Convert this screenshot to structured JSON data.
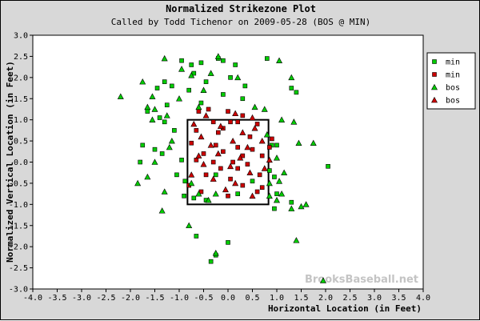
{
  "chart_data": {
    "type": "scatter",
    "title": "Normalized Strikezone Plot",
    "subtitle": "Called by Todd Tichenor on 2009-05-28 (BOS @ MIN)",
    "xlabel": "Horizontal Location (in Feet)",
    "ylabel": "Normalized Vertical Location (in Feet)",
    "xlim": [
      -4.0,
      4.0
    ],
    "ylim": [
      -3.0,
      3.0
    ],
    "x_ticks": [
      "-4.0",
      "-3.5",
      "-3.0",
      "-2.5",
      "-2.0",
      "-1.5",
      "-1.0",
      "-0.5",
      "0.0",
      "0.5",
      "1.0",
      "1.5",
      "2.0",
      "2.5",
      "3.0",
      "3.5",
      "4.0"
    ],
    "y_ticks": [
      "3.0",
      "2.5",
      "2.0",
      "1.5",
      "1.0",
      "0.5",
      "0.0",
      "-0.5",
      "-1.0",
      "-1.5",
      "-2.0",
      "-2.5",
      "-3.0"
    ],
    "grid": false,
    "legend_position": "top-right",
    "watermark": "BrooksBaseball.net",
    "strike_zone": {
      "x": [
        -0.83,
        0.83
      ],
      "y": [
        -1.0,
        1.0
      ]
    },
    "series": [
      {
        "name": "min",
        "marker": "square",
        "color": "#00cc00",
        "points": [
          [
            -0.95,
            2.4
          ],
          [
            -0.75,
            2.3
          ],
          [
            -0.55,
            2.35
          ],
          [
            -0.2,
            2.45
          ],
          [
            -0.1,
            2.4
          ],
          [
            0.15,
            2.3
          ],
          [
            0.8,
            2.45
          ],
          [
            -1.3,
            1.9
          ],
          [
            -0.7,
            2.1
          ],
          [
            -0.45,
            1.9
          ],
          [
            0.05,
            2.0
          ],
          [
            0.35,
            1.8
          ],
          [
            -1.45,
            1.75
          ],
          [
            -1.15,
            1.8
          ],
          [
            -0.8,
            1.7
          ],
          [
            -0.1,
            1.6
          ],
          [
            0.3,
            1.5
          ],
          [
            1.3,
            1.75
          ],
          [
            1.4,
            1.65
          ],
          [
            -1.65,
            1.2
          ],
          [
            -1.25,
            1.35
          ],
          [
            -0.55,
            1.4
          ],
          [
            -1.4,
            1.05
          ],
          [
            -1.3,
            0.95
          ],
          [
            -1.1,
            0.75
          ],
          [
            -1.75,
            0.4
          ],
          [
            -1.5,
            0.3
          ],
          [
            -1.35,
            0.2
          ],
          [
            0.9,
            0.4
          ],
          [
            1.0,
            0.4
          ],
          [
            -0.95,
            0.05
          ],
          [
            -1.05,
            -0.3
          ],
          [
            -0.88,
            -0.45
          ],
          [
            -0.9,
            -0.8
          ],
          [
            -0.7,
            -0.85
          ],
          [
            -0.45,
            -0.9
          ],
          [
            -0.25,
            -0.3
          ],
          [
            0.2,
            -0.75
          ],
          [
            0.85,
            -0.2
          ],
          [
            0.95,
            -0.35
          ],
          [
            1.0,
            -0.75
          ],
          [
            0.95,
            -1.1
          ],
          [
            1.3,
            -0.95
          ],
          [
            2.05,
            -0.1
          ],
          [
            -0.65,
            -1.75
          ],
          [
            0.0,
            -1.9
          ],
          [
            -0.25,
            -2.2
          ],
          [
            -0.35,
            -2.35
          ],
          [
            0.5,
            -0.45
          ],
          [
            -1.8,
            0.0
          ]
        ]
      },
      {
        "name": "min",
        "marker": "square",
        "color": "#cc0000",
        "points": [
          [
            -0.4,
            1.25
          ],
          [
            -0.6,
            1.2
          ],
          [
            0.0,
            1.2
          ],
          [
            0.3,
            1.1
          ],
          [
            -0.3,
            0.95
          ],
          [
            0.05,
            0.95
          ],
          [
            0.2,
            0.95
          ],
          [
            0.6,
            0.9
          ],
          [
            -0.65,
            0.75
          ],
          [
            -0.2,
            0.7
          ],
          [
            0.45,
            0.6
          ],
          [
            0.9,
            0.55
          ],
          [
            -0.75,
            0.45
          ],
          [
            -0.25,
            0.4
          ],
          [
            0.2,
            0.35
          ],
          [
            0.5,
            0.3
          ],
          [
            0.85,
            0.35
          ],
          [
            -0.5,
            0.2
          ],
          [
            -0.1,
            0.25
          ],
          [
            0.3,
            0.15
          ],
          [
            0.7,
            0.15
          ],
          [
            -0.65,
            0.05
          ],
          [
            -0.3,
            0.0
          ],
          [
            0.1,
            0.0
          ],
          [
            0.4,
            -0.05
          ],
          [
            -0.15,
            -0.15
          ],
          [
            0.2,
            -0.15
          ],
          [
            -0.45,
            -0.3
          ],
          [
            0.65,
            -0.3
          ],
          [
            -0.8,
            -0.55
          ],
          [
            0.3,
            -0.55
          ],
          [
            0.7,
            -0.6
          ],
          [
            -0.55,
            -0.7
          ],
          [
            0.0,
            -0.8
          ],
          [
            0.6,
            -0.7
          ],
          [
            -0.1,
            0.8
          ],
          [
            0.05,
            -0.4
          ]
        ]
      },
      {
        "name": "bos",
        "marker": "triangle",
        "color": "#00cc00",
        "points": [
          [
            -1.3,
            2.45
          ],
          [
            -0.95,
            2.2
          ],
          [
            -0.75,
            2.05
          ],
          [
            -0.35,
            2.1
          ],
          [
            -0.2,
            2.5
          ],
          [
            0.2,
            2.0
          ],
          [
            1.05,
            2.4
          ],
          [
            1.3,
            2.0
          ],
          [
            -1.75,
            1.9
          ],
          [
            -0.5,
            1.7
          ],
          [
            -2.2,
            1.55
          ],
          [
            -1.55,
            1.55
          ],
          [
            -1.0,
            1.5
          ],
          [
            -0.6,
            1.3
          ],
          [
            0.55,
            1.3
          ],
          [
            0.75,
            1.25
          ],
          [
            -1.65,
            1.3
          ],
          [
            -1.5,
            1.25
          ],
          [
            -1.25,
            1.1
          ],
          [
            -1.55,
            1.0
          ],
          [
            1.1,
            1.0
          ],
          [
            1.35,
            0.95
          ],
          [
            -1.15,
            0.5
          ],
          [
            -1.2,
            0.35
          ],
          [
            -1.5,
            0.0
          ],
          [
            -1.85,
            -0.5
          ],
          [
            -1.65,
            -0.35
          ],
          [
            0.8,
            0.65
          ],
          [
            1.45,
            0.45
          ],
          [
            1.75,
            0.45
          ],
          [
            1.0,
            0.1
          ],
          [
            1.15,
            -0.25
          ],
          [
            1.05,
            -0.45
          ],
          [
            0.85,
            -0.5
          ],
          [
            0.85,
            -0.8
          ],
          [
            1.0,
            -0.9
          ],
          [
            1.1,
            -0.75
          ],
          [
            1.3,
            -1.1
          ],
          [
            1.5,
            -1.05
          ],
          [
            1.6,
            -1.0
          ],
          [
            -0.75,
            -0.5
          ],
          [
            -0.6,
            -0.75
          ],
          [
            -0.4,
            -0.9
          ],
          [
            -0.25,
            -0.75
          ],
          [
            -1.35,
            -1.15
          ],
          [
            -0.8,
            -1.5
          ],
          [
            -0.25,
            -2.15
          ],
          [
            1.4,
            -1.85
          ],
          [
            1.95,
            -2.8
          ],
          [
            -1.3,
            -0.7
          ]
        ]
      },
      {
        "name": "bos",
        "marker": "triangle",
        "color": "#cc0000",
        "points": [
          [
            -0.45,
            1.1
          ],
          [
            0.15,
            1.15
          ],
          [
            0.5,
            1.05
          ],
          [
            -0.7,
            0.9
          ],
          [
            -0.15,
            0.85
          ],
          [
            0.55,
            0.8
          ],
          [
            0.3,
            0.7
          ],
          [
            -0.55,
            0.6
          ],
          [
            0.1,
            0.5
          ],
          [
            0.7,
            0.5
          ],
          [
            -0.35,
            0.4
          ],
          [
            0.4,
            0.35
          ],
          [
            -0.2,
            0.2
          ],
          [
            0.25,
            0.1
          ],
          [
            0.85,
            0.05
          ],
          [
            -0.5,
            -0.05
          ],
          [
            0.05,
            -0.1
          ],
          [
            0.45,
            -0.25
          ],
          [
            -0.3,
            -0.4
          ],
          [
            0.15,
            -0.5
          ],
          [
            0.75,
            -0.15
          ],
          [
            -0.75,
            -0.3
          ],
          [
            -0.05,
            -0.65
          ],
          [
            0.5,
            -0.8
          ],
          [
            -0.6,
            0.15
          ]
        ]
      }
    ]
  }
}
